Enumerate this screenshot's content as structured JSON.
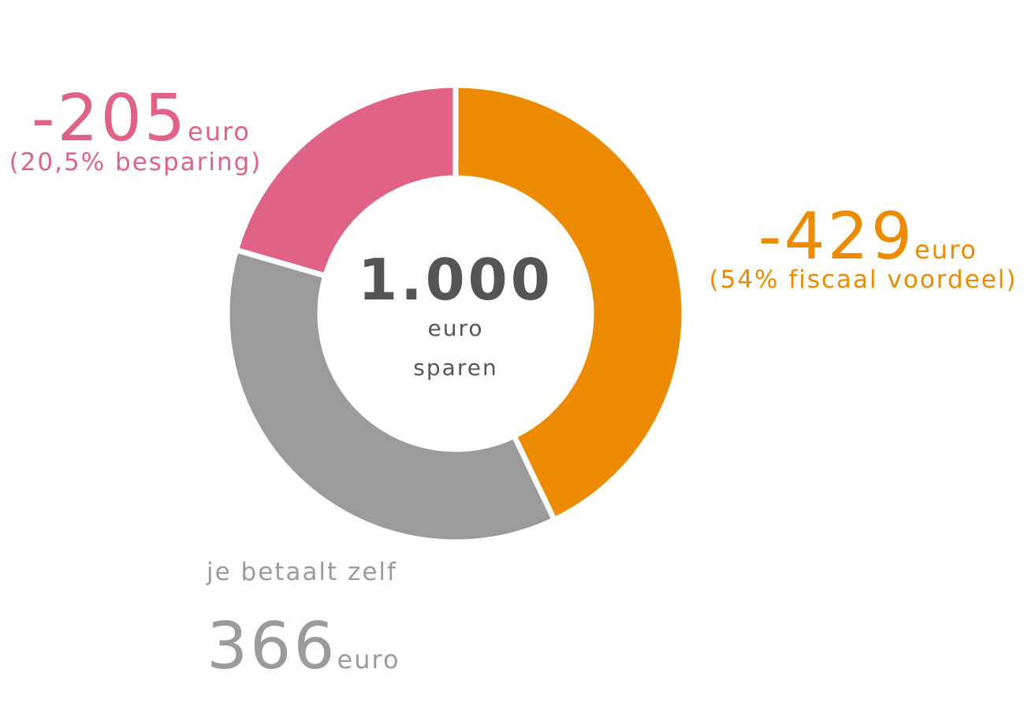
{
  "chart_data": {
    "type": "donut",
    "categories": [
      "(54% fiscaal voordeel)",
      "je betaalt zelf",
      "(20,5% besparing)"
    ],
    "values": [
      429,
      366,
      205
    ],
    "value_labels": [
      "-429",
      "366",
      "-205"
    ],
    "colors": [
      "#ec8b00",
      "#9b9b9b",
      "#e06285"
    ],
    "unit": "euro",
    "total": {
      "value": 1000,
      "label": "1.000"
    },
    "center_note": "sparen"
  }
}
